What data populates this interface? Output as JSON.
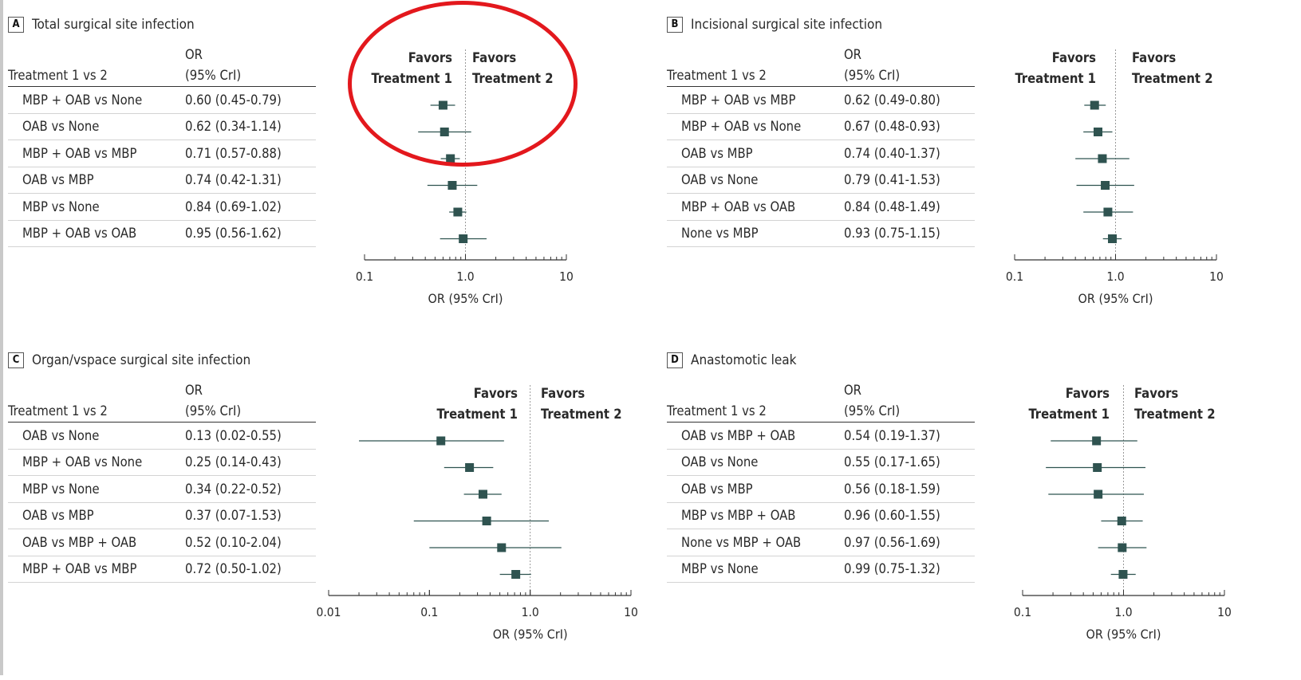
{
  "colors": {
    "marker": "#2f5350",
    "highlight": "#e3181d",
    "ref_line": "#999999"
  },
  "table_headers": {
    "treatment": "Treatment 1 vs 2",
    "or_line1": "OR",
    "or_line2": "(95% CrI)"
  },
  "favors": {
    "left": [
      "Favors",
      "Treatment 1"
    ],
    "right": [
      "Favors",
      "Treatment 2"
    ]
  },
  "axis_label": "OR (95% CrI)",
  "annotation": {
    "shape": "ellipse",
    "color": "#e3181d",
    "circles": "panel A favors header"
  },
  "panels": [
    {
      "letter": "A",
      "title": "Total surgical site infection"
    },
    {
      "letter": "B",
      "title": "Incisional surgical site infection"
    },
    {
      "letter": "C",
      "title": "Organ/vspace surgical site infection"
    },
    {
      "letter": "D",
      "title": "Anastomotic leak"
    }
  ],
  "chart_data": [
    {
      "type": "forest",
      "panel": "A",
      "title": "Total surgical site infection",
      "xlabel": "OR (95% CrI)",
      "xscale": "log",
      "xlim": [
        0.1,
        10
      ],
      "ticks": [
        "0.1",
        "1.0",
        "10"
      ],
      "reference_line": 1,
      "rows": [
        {
          "label": "MBP + OAB vs None",
          "text": "0.60 (0.45-0.79)",
          "or": 0.6,
          "lo": 0.45,
          "hi": 0.79
        },
        {
          "label": "OAB vs None",
          "text": "0.62 (0.34-1.14)",
          "or": 0.62,
          "lo": 0.34,
          "hi": 1.14
        },
        {
          "label": "MBP + OAB vs MBP",
          "text": "0.71 (0.57-0.88)",
          "or": 0.71,
          "lo": 0.57,
          "hi": 0.88
        },
        {
          "label": "OAB vs MBP",
          "text": "0.74 (0.42-1.31)",
          "or": 0.74,
          "lo": 0.42,
          "hi": 1.31
        },
        {
          "label": "MBP vs None",
          "text": "0.84 (0.69-1.02)",
          "or": 0.84,
          "lo": 0.69,
          "hi": 1.02
        },
        {
          "label": "MBP + OAB vs OAB",
          "text": "0.95 (0.56-1.62)",
          "or": 0.95,
          "lo": 0.56,
          "hi": 1.62
        }
      ]
    },
    {
      "type": "forest",
      "panel": "B",
      "title": "Incisional surgical site infection",
      "xlabel": "OR (95% CrI)",
      "xscale": "log",
      "xlim": [
        0.1,
        10
      ],
      "ticks": [
        "0.1",
        "1.0",
        "10"
      ],
      "reference_line": 1,
      "rows": [
        {
          "label": "MBP + OAB vs MBP",
          "text": "0.62 (0.49-0.80)",
          "or": 0.62,
          "lo": 0.49,
          "hi": 0.8
        },
        {
          "label": "MBP + OAB vs None",
          "text": "0.67 (0.48-0.93)",
          "or": 0.67,
          "lo": 0.48,
          "hi": 0.93
        },
        {
          "label": "OAB vs MBP",
          "text": "0.74 (0.40-1.37)",
          "or": 0.74,
          "lo": 0.4,
          "hi": 1.37
        },
        {
          "label": "OAB vs None",
          "text": "0.79 (0.41-1.53)",
          "or": 0.79,
          "lo": 0.41,
          "hi": 1.53
        },
        {
          "label": "MBP + OAB vs OAB",
          "text": "0.84 (0.48-1.49)",
          "or": 0.84,
          "lo": 0.48,
          "hi": 1.49
        },
        {
          "label": "None vs MBP",
          "text": "0.93 (0.75-1.15)",
          "or": 0.93,
          "lo": 0.75,
          "hi": 1.15
        }
      ]
    },
    {
      "type": "forest",
      "panel": "C",
      "title": "Organ/vspace surgical site infection",
      "xlabel": "OR (95% CrI)",
      "xscale": "log",
      "xlim": [
        0.01,
        10
      ],
      "ticks": [
        "0.01",
        "0.1",
        "1.0",
        "10"
      ],
      "reference_line": 1,
      "rows": [
        {
          "label": "OAB vs None",
          "text": "0.13 (0.02-0.55)",
          "or": 0.13,
          "lo": 0.02,
          "hi": 0.55
        },
        {
          "label": "MBP + OAB vs None",
          "text": "0.25 (0.14-0.43)",
          "or": 0.25,
          "lo": 0.14,
          "hi": 0.43
        },
        {
          "label": "MBP vs None",
          "text": "0.34 (0.22-0.52)",
          "or": 0.34,
          "lo": 0.22,
          "hi": 0.52
        },
        {
          "label": "OAB vs MBP",
          "text": "0.37 (0.07-1.53)",
          "or": 0.37,
          "lo": 0.07,
          "hi": 1.53
        },
        {
          "label": "OAB vs MBP + OAB",
          "text": "0.52 (0.10-2.04)",
          "or": 0.52,
          "lo": 0.1,
          "hi": 2.04
        },
        {
          "label": "MBP + OAB vs MBP",
          "text": "0.72 (0.50-1.02)",
          "or": 0.72,
          "lo": 0.5,
          "hi": 1.02
        }
      ]
    },
    {
      "type": "forest",
      "panel": "D",
      "title": "Anastomotic leak",
      "xlabel": "OR (95% CrI)",
      "xscale": "log",
      "xlim": [
        0.1,
        10
      ],
      "ticks": [
        "0.1",
        "1.0",
        "10"
      ],
      "reference_line": 1,
      "rows": [
        {
          "label": "OAB vs MBP + OAB",
          "text": "0.54 (0.19-1.37)",
          "or": 0.54,
          "lo": 0.19,
          "hi": 1.37
        },
        {
          "label": "OAB vs None",
          "text": "0.55 (0.17-1.65)",
          "or": 0.55,
          "lo": 0.17,
          "hi": 1.65
        },
        {
          "label": "OAB vs MBP",
          "text": "0.56 (0.18-1.59)",
          "or": 0.56,
          "lo": 0.18,
          "hi": 1.59
        },
        {
          "label": "MBP vs MBP + OAB",
          "text": "0.96 (0.60-1.55)",
          "or": 0.96,
          "lo": 0.6,
          "hi": 1.55
        },
        {
          "label": "None vs MBP + OAB",
          "text": "0.97 (0.56-1.69)",
          "or": 0.97,
          "lo": 0.56,
          "hi": 1.69
        },
        {
          "label": "MBP vs None",
          "text": "0.99 (0.75-1.32)",
          "or": 0.99,
          "lo": 0.75,
          "hi": 1.32
        }
      ]
    }
  ]
}
